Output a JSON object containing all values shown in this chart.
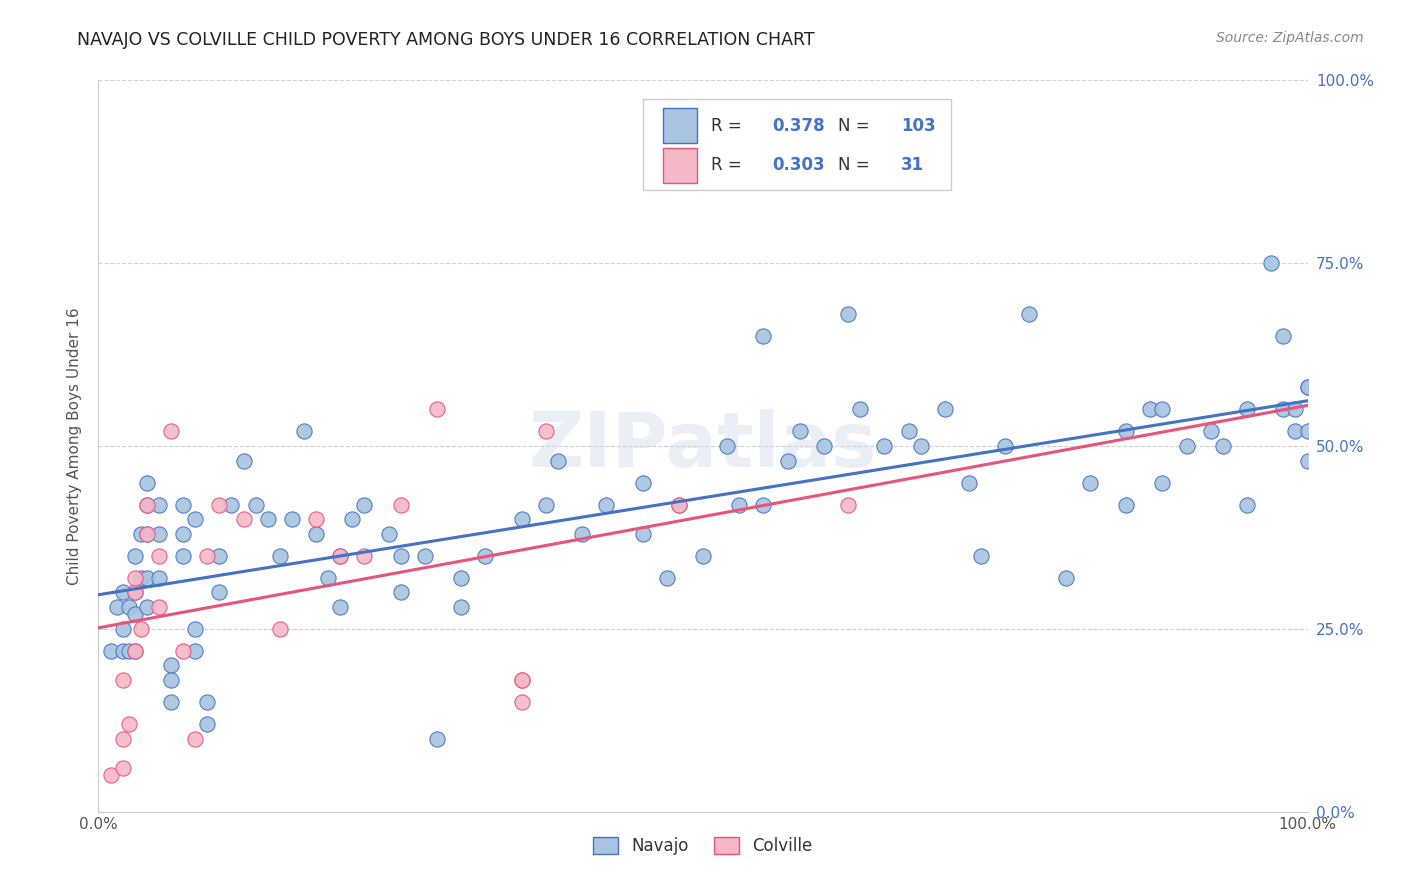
{
  "title": "NAVAJO VS COLVILLE CHILD POVERTY AMONG BOYS UNDER 16 CORRELATION CHART",
  "source": "Source: ZipAtlas.com",
  "ylabel": "Child Poverty Among Boys Under 16",
  "xlim": [
    0,
    1
  ],
  "ylim": [
    0,
    1
  ],
  "xtick_labels": [
    "0.0%",
    "100.0%"
  ],
  "ytick_labels": [
    "",
    "",
    "",
    "",
    ""
  ],
  "ytick_right_labels": [
    "100.0%",
    "75.0%",
    "50.0%",
    "25.0%",
    "0.0%"
  ],
  "ytick_positions": [
    1.0,
    0.75,
    0.5,
    0.25,
    0.0
  ],
  "xtick_positions": [
    0.0,
    1.0
  ],
  "navajo_color": "#a8c4e0",
  "colville_color": "#f4b8c8",
  "navajo_line_color": "#4472c4",
  "colville_line_color": "#e8547a",
  "legend_R_navajo": "0.378",
  "legend_N_navajo": "103",
  "legend_R_colville": "0.303",
  "legend_N_colville": "31",
  "watermark": "ZIPatlas",
  "background_color": "#ffffff",
  "navajo_x": [
    0.01,
    0.015,
    0.02,
    0.02,
    0.02,
    0.025,
    0.025,
    0.03,
    0.03,
    0.03,
    0.03,
    0.035,
    0.035,
    0.04,
    0.04,
    0.04,
    0.04,
    0.04,
    0.05,
    0.05,
    0.05,
    0.06,
    0.06,
    0.06,
    0.07,
    0.07,
    0.07,
    0.08,
    0.08,
    0.08,
    0.09,
    0.09,
    0.1,
    0.1,
    0.11,
    0.12,
    0.13,
    0.14,
    0.15,
    0.16,
    0.17,
    0.18,
    0.19,
    0.2,
    0.2,
    0.21,
    0.22,
    0.24,
    0.25,
    0.25,
    0.27,
    0.28,
    0.3,
    0.3,
    0.32,
    0.35,
    0.37,
    0.38,
    0.4,
    0.42,
    0.45,
    0.45,
    0.47,
    0.48,
    0.5,
    0.52,
    0.53,
    0.55,
    0.55,
    0.57,
    0.58,
    0.6,
    0.62,
    0.63,
    0.65,
    0.67,
    0.68,
    0.7,
    0.72,
    0.73,
    0.75,
    0.77,
    0.8,
    0.82,
    0.85,
    0.85,
    0.87,
    0.88,
    0.88,
    0.9,
    0.92,
    0.93,
    0.95,
    0.95,
    0.97,
    0.98,
    0.98,
    0.99,
    0.99,
    1.0,
    1.0,
    1.0,
    1.0
  ],
  "navajo_y": [
    0.22,
    0.28,
    0.3,
    0.25,
    0.22,
    0.28,
    0.22,
    0.35,
    0.3,
    0.27,
    0.22,
    0.38,
    0.32,
    0.45,
    0.42,
    0.38,
    0.32,
    0.28,
    0.42,
    0.38,
    0.32,
    0.2,
    0.18,
    0.15,
    0.42,
    0.38,
    0.35,
    0.4,
    0.25,
    0.22,
    0.15,
    0.12,
    0.35,
    0.3,
    0.42,
    0.48,
    0.42,
    0.4,
    0.35,
    0.4,
    0.52,
    0.38,
    0.32,
    0.35,
    0.28,
    0.4,
    0.42,
    0.38,
    0.35,
    0.3,
    0.35,
    0.1,
    0.32,
    0.28,
    0.35,
    0.4,
    0.42,
    0.48,
    0.38,
    0.42,
    0.45,
    0.38,
    0.32,
    0.42,
    0.35,
    0.5,
    0.42,
    0.42,
    0.65,
    0.48,
    0.52,
    0.5,
    0.68,
    0.55,
    0.5,
    0.52,
    0.5,
    0.55,
    0.45,
    0.35,
    0.5,
    0.68,
    0.32,
    0.45,
    0.52,
    0.42,
    0.55,
    0.55,
    0.45,
    0.5,
    0.52,
    0.5,
    0.42,
    0.55,
    0.75,
    0.55,
    0.65,
    0.52,
    0.55,
    0.58,
    0.48,
    0.52,
    0.58
  ],
  "colville_x": [
    0.01,
    0.02,
    0.02,
    0.02,
    0.025,
    0.03,
    0.03,
    0.03,
    0.035,
    0.04,
    0.04,
    0.05,
    0.05,
    0.06,
    0.07,
    0.08,
    0.09,
    0.1,
    0.12,
    0.15,
    0.18,
    0.2,
    0.22,
    0.25,
    0.28,
    0.35,
    0.35,
    0.35,
    0.37,
    0.48,
    0.62
  ],
  "colville_y": [
    0.05,
    0.06,
    0.1,
    0.18,
    0.12,
    0.22,
    0.3,
    0.32,
    0.25,
    0.42,
    0.38,
    0.35,
    0.28,
    0.52,
    0.22,
    0.1,
    0.35,
    0.42,
    0.4,
    0.25,
    0.4,
    0.35,
    0.35,
    0.42,
    0.55,
    0.15,
    0.18,
    0.18,
    0.52,
    0.42,
    0.42
  ]
}
